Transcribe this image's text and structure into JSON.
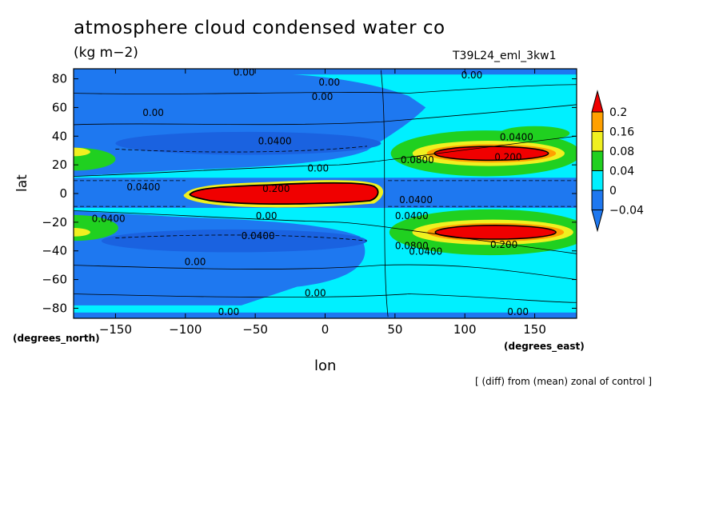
{
  "chart_data": {
    "type": "heatmap",
    "title": "atmosphere cloud condensed water co",
    "units": "(kg m−2)",
    "run_id": "T39L24_eml_3kw1",
    "xlabel": "lon",
    "ylabel": "lat",
    "x_caption": "(degrees_east)",
    "y_caption": "(degrees_north)",
    "footnote": "[ (diff) from (mean) zonal of control ]",
    "xlim": [
      -180,
      180
    ],
    "ylim": [
      -87,
      87
    ],
    "x_ticks": [
      -150,
      -100,
      -50,
      0,
      50,
      100,
      150
    ],
    "x_tick_labels": [
      "−150",
      "−100",
      "−50",
      "0",
      "50",
      "100",
      "150"
    ],
    "y_ticks": [
      80,
      60,
      40,
      20,
      0,
      -20,
      -40,
      -60,
      -80
    ],
    "y_tick_labels": [
      "80",
      "60",
      "40",
      "20",
      "0",
      "−20",
      "−40",
      "−60",
      "−80"
    ],
    "colorbar": {
      "levels": [
        -0.04,
        0,
        0.04,
        0.08,
        0.16,
        0.2
      ],
      "labels": [
        "−0.04",
        "0",
        "0.04",
        "0.08",
        "0.16",
        "0.2"
      ],
      "colors": [
        "#1e78f0",
        "#00f0ff",
        "#20d020",
        "#f0f020",
        "#ffa000",
        "#f00000"
      ]
    },
    "features": [
      {
        "region": "equatorial band",
        "lon": [
          -100,
          40
        ],
        "lat": [
          -8,
          8
        ],
        "value_range": [
          0.08,
          0.3
        ]
      },
      {
        "region": "northern subtropics",
        "lon": [
          70,
          165
        ],
        "lat": [
          22,
          35
        ],
        "value_range": [
          0.08,
          0.3
        ]
      },
      {
        "region": "southern subtropics",
        "lon": [
          70,
          170
        ],
        "lat": [
          -35,
          -20
        ],
        "value_range": [
          0.08,
          0.3
        ]
      },
      {
        "region": "northern mid-latitudes",
        "lon": [
          -150,
          30
        ],
        "lat": [
          25,
          45
        ],
        "value_range": [
          -0.06,
          -0.02
        ]
      },
      {
        "region": "southern mid-latitudes",
        "lon": [
          -150,
          20
        ],
        "lat": [
          -45,
          -25
        ],
        "value_range": [
          -0.06,
          -0.02
        ]
      }
    ],
    "contour_labels": [
      {
        "text": "0.00",
        "lon": -58,
        "lat": 85
      },
      {
        "text": "0.00",
        "lon": 3,
        "lat": 78
      },
      {
        "text": "0.00",
        "lon": -2,
        "lat": 68
      },
      {
        "text": "0.00",
        "lon": 105,
        "lat": 83
      },
      {
        "text": "0.00",
        "lon": -123,
        "lat": 57
      },
      {
        "text": "0.0400",
        "lon": -36,
        "lat": 37
      },
      {
        "text": "0.0400",
        "lon": 137,
        "lat": 40
      },
      {
        "text": "0.200",
        "lon": 131,
        "lat": 26
      },
      {
        "text": "0.0800",
        "lon": 66,
        "lat": 24
      },
      {
        "text": "0.00",
        "lon": -5,
        "lat": 18
      },
      {
        "text": "0.0400",
        "lon": -130,
        "lat": 5
      },
      {
        "text": "0.200",
        "lon": -35,
        "lat": 4
      },
      {
        "text": "0.0400",
        "lon": 65,
        "lat": -4
      },
      {
        "text": "0.0400",
        "lon": -155,
        "lat": -17
      },
      {
        "text": "0.00",
        "lon": -42,
        "lat": -15
      },
      {
        "text": "0.0400",
        "lon": 62,
        "lat": -15
      },
      {
        "text": "0.0400",
        "lon": -48,
        "lat": -29
      },
      {
        "text": "0.200",
        "lon": 128,
        "lat": -35
      },
      {
        "text": "0.0800",
        "lon": 62,
        "lat": -36
      },
      {
        "text": "0.0400",
        "lon": 72,
        "lat": -40
      },
      {
        "text": "0.00",
        "lon": -93,
        "lat": -47
      },
      {
        "text": "0.00",
        "lon": -7,
        "lat": -69
      },
      {
        "text": "0.00",
        "lon": -69,
        "lat": -82
      },
      {
        "text": "0.00",
        "lon": 138,
        "lat": -82
      }
    ]
  }
}
